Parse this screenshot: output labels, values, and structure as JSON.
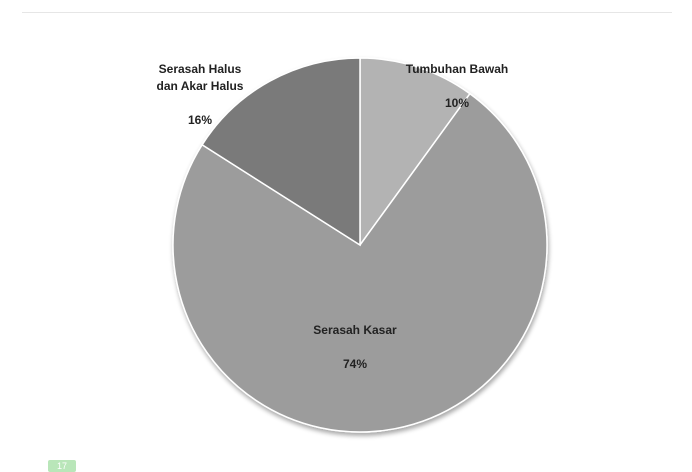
{
  "chart_data": {
    "type": "pie",
    "title": "",
    "slices": [
      {
        "label": "Tumbuhan Bawah",
        "value": 10,
        "value_label": "10%",
        "color": "#b3b3b3"
      },
      {
        "label": "Serasah Kasar",
        "value": 74,
        "value_label": "74%",
        "color": "#9c9c9c"
      },
      {
        "label": "Serasah Halus\ndan Akar Halus",
        "value": 16,
        "value_label": "16%",
        "color": "#7a7a7a"
      }
    ],
    "start_angle_deg": 0,
    "direction": "clockwise",
    "legend": "none",
    "data_labels": "category name and percentage"
  },
  "footer": {
    "badge_text": "17",
    "badge_color": "#b9e6b9"
  }
}
